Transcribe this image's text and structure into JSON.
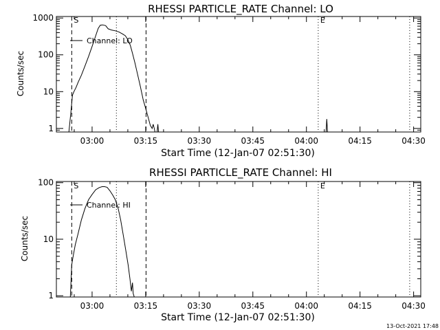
{
  "stamp": "13-Oct-2021 17:48",
  "chart_data": [
    {
      "type": "line",
      "title": "RHESSI PARTICLE_RATE Channel: LO",
      "xlabel": "Start Time (12-Jan-07 02:51:30)",
      "ylabel": "Counts/sec",
      "yscale": "log",
      "xlim": [
        -1.5,
        100.5
      ],
      "ylim": [
        0.8,
        1100
      ],
      "x_ticks": [
        {
          "x": 8.5,
          "label": "03:00"
        },
        {
          "x": 23.5,
          "label": "03:15"
        },
        {
          "x": 38.5,
          "label": "03:30"
        },
        {
          "x": 53.5,
          "label": "03:45"
        },
        {
          "x": 68.5,
          "label": "04:00"
        },
        {
          "x": 83.5,
          "label": "04:15"
        },
        {
          "x": 98.5,
          "label": "04:30"
        }
      ],
      "y_ticks": [
        {
          "y": 1,
          "label": "1"
        },
        {
          "y": 10,
          "label": "10"
        },
        {
          "y": 100,
          "label": "100"
        },
        {
          "y": 1000,
          "label": "1000"
        }
      ],
      "legend": {
        "label": "Channel: LO",
        "position": "upper-left"
      },
      "markers": [
        {
          "x": 2.8,
          "style": "dashed",
          "label": "S"
        },
        {
          "x": 15.3,
          "style": "dotted",
          "label": ""
        },
        {
          "x": 23.6,
          "style": "dashed",
          "label": ""
        },
        {
          "x": 71.8,
          "style": "dotted",
          "label": "E"
        },
        {
          "x": 97.4,
          "style": "dotted",
          "label": ""
        }
      ],
      "series": [
        {
          "x": [
            2.0,
            2.6,
            3.0,
            3.4,
            4.0,
            4.6,
            5.5,
            6.5,
            7.5,
            8.5,
            9.5,
            10.2,
            10.8,
            11.5,
            12.3,
            13.0,
            14.0,
            15.0,
            16.0,
            17.0,
            17.8,
            18.5,
            19.2,
            19.8,
            20.5,
            21.2,
            22.0,
            22.8,
            23.5,
            24.2,
            24.8,
            25.3,
            25.6,
            25.9,
            26.1
          ],
          "y": [
            0.8,
            3,
            8,
            10,
            13,
            18,
            28,
            50,
            90,
            170,
            330,
            520,
            640,
            650,
            620,
            510,
            470,
            450,
            420,
            370,
            330,
            260,
            180,
            110,
            60,
            30,
            14,
            6,
            3.5,
            2,
            1.2,
            1.0,
            1.3,
            1.0,
            0.8
          ]
        },
        {
          "x": [
            26.7,
            26.9,
            27.1
          ],
          "y": [
            0.8,
            1.3,
            0.8
          ]
        },
        {
          "x": [
            74.0,
            74.2,
            74.4
          ],
          "y": [
            0.8,
            1.8,
            0.8
          ]
        }
      ]
    },
    {
      "type": "line",
      "title": "RHESSI PARTICLE_RATE Channel: HI",
      "xlabel": "Start Time (12-Jan-07 02:51:30)",
      "ylabel": "Counts/sec",
      "yscale": "log",
      "xlim": [
        -1.5,
        100.5
      ],
      "ylim": [
        0.95,
        105
      ],
      "x_ticks": [
        {
          "x": 8.5,
          "label": "03:00"
        },
        {
          "x": 23.5,
          "label": "03:15"
        },
        {
          "x": 38.5,
          "label": "03:30"
        },
        {
          "x": 53.5,
          "label": "03:45"
        },
        {
          "x": 68.5,
          "label": "04:00"
        },
        {
          "x": 83.5,
          "label": "04:15"
        },
        {
          "x": 98.5,
          "label": "04:30"
        }
      ],
      "y_ticks": [
        {
          "y": 1,
          "label": "1"
        },
        {
          "y": 10,
          "label": "10"
        },
        {
          "y": 100,
          "label": "100"
        }
      ],
      "legend": {
        "label": "Channel: HI",
        "position": "upper-left"
      },
      "markers": [
        {
          "x": 2.8,
          "style": "dashed",
          "label": "S"
        },
        {
          "x": 15.3,
          "style": "dotted",
          "label": ""
        },
        {
          "x": 23.6,
          "style": "dashed",
          "label": ""
        },
        {
          "x": 71.8,
          "style": "dotted",
          "label": "E"
        },
        {
          "x": 97.4,
          "style": "dotted",
          "label": ""
        }
      ],
      "series": [
        {
          "x": [
            2.4,
            2.8,
            3.2,
            3.8,
            4.5,
            5.5,
            6.5,
            7.5,
            8.5,
            9.5,
            10.5,
            11.3,
            12.0,
            12.7,
            13.5,
            14.3,
            15.0,
            15.8,
            16.5,
            17.2,
            18.0,
            18.6,
            19.1,
            19.5,
            19.8,
            20.0,
            20.3
          ],
          "y": [
            0.95,
            3.5,
            5,
            8,
            12,
            22,
            35,
            50,
            62,
            75,
            82,
            85,
            85,
            83,
            72,
            60,
            50,
            35,
            22,
            12,
            6,
            3.5,
            2,
            1.2,
            1.7,
            1.1,
            0.95
          ]
        }
      ]
    }
  ]
}
